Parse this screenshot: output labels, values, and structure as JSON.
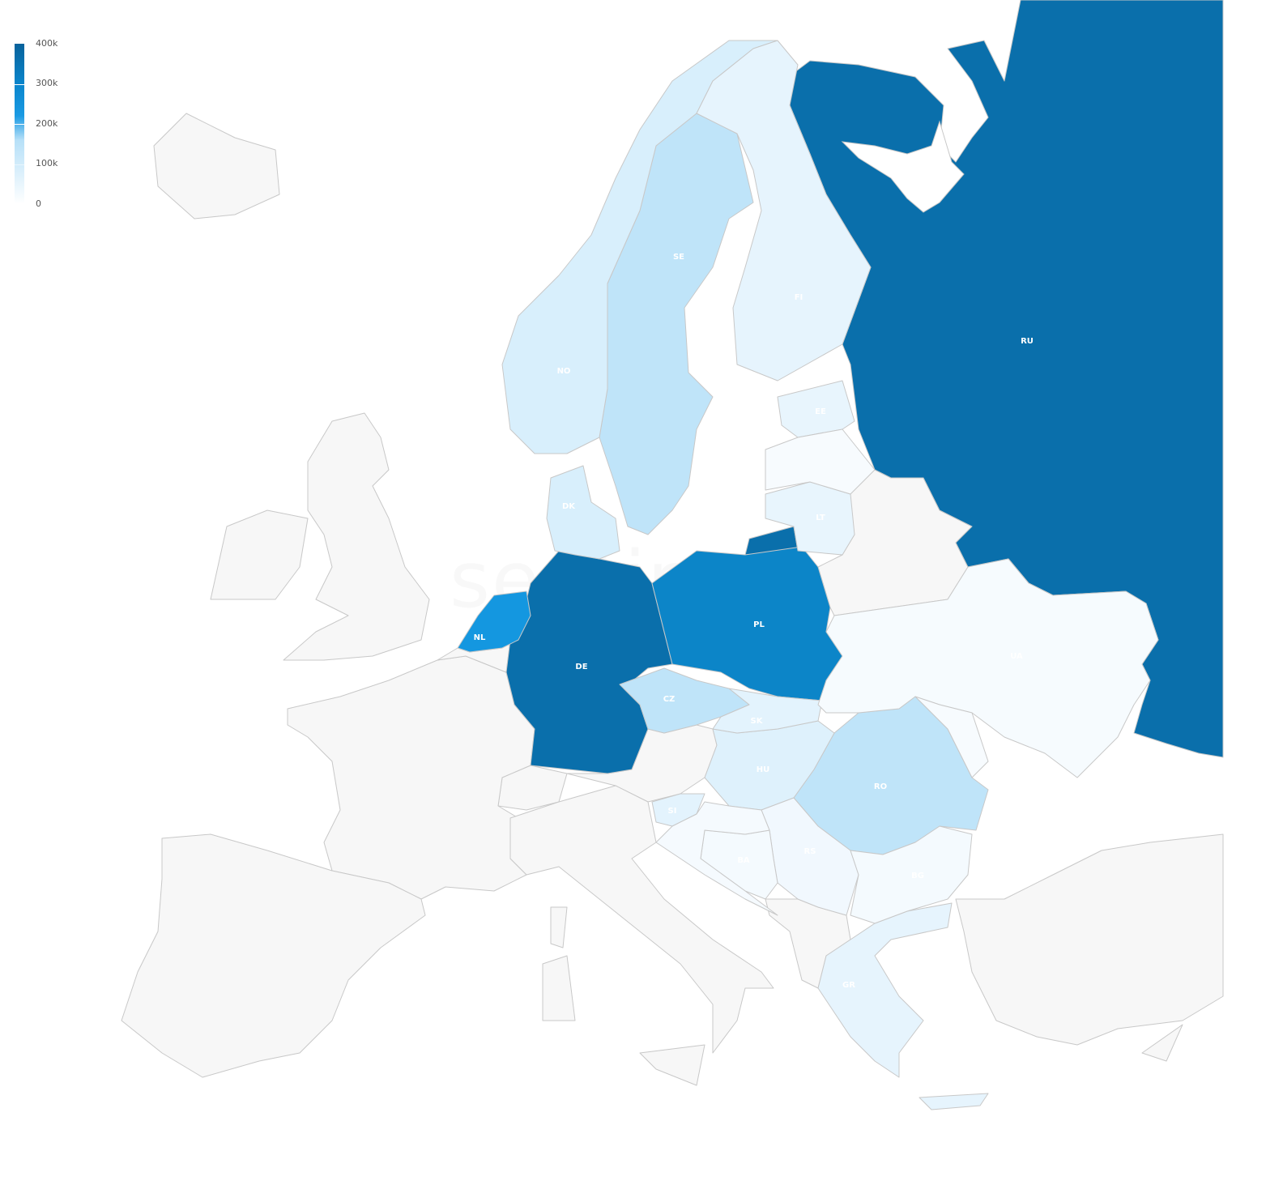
{
  "watermark": "sentinelone",
  "legend": {
    "ticks": [
      "400k",
      "300k",
      "200k",
      "100k",
      "0"
    ],
    "min": 0,
    "max": 400000,
    "colors": [
      "#ffffff",
      "#b6e0f8",
      "#1a9ae3",
      "#0a85cc",
      "#08629b"
    ]
  },
  "colors": {
    "no_data": "#f7f7f7",
    "border": "#c8c8c8"
  },
  "countries": [
    {
      "code": "RU",
      "label": "RU",
      "value": 380000,
      "color": "#0a6fab"
    },
    {
      "code": "DE",
      "label": "DE",
      "value": 370000,
      "color": "#0a6fab"
    },
    {
      "code": "PL",
      "label": "PL",
      "value": 300000,
      "color": "#0c85c8"
    },
    {
      "code": "NL",
      "label": "NL",
      "value": 220000,
      "color": "#1497e0"
    },
    {
      "code": "SE",
      "label": "SE",
      "value": 70000,
      "color": "#bfe4f9"
    },
    {
      "code": "CZ",
      "label": "CZ",
      "value": 70000,
      "color": "#bfe4f9"
    },
    {
      "code": "RO",
      "label": "RO",
      "value": 65000,
      "color": "#bfe4f9"
    },
    {
      "code": "NO",
      "label": "NO",
      "value": 50000,
      "color": "#d8effc"
    },
    {
      "code": "DK",
      "label": "DK",
      "value": 50000,
      "color": "#d8effc"
    },
    {
      "code": "HU",
      "label": "HU",
      "value": 40000,
      "color": "#def1fc"
    },
    {
      "code": "SK",
      "label": "SK",
      "value": 35000,
      "color": "#e3f3fd"
    },
    {
      "code": "FI",
      "label": "FI",
      "value": 30000,
      "color": "#e6f4fd"
    },
    {
      "code": "SI",
      "label": "SI",
      "value": 30000,
      "color": "#e3f3fd"
    },
    {
      "code": "GR",
      "label": "GR",
      "value": 30000,
      "color": "#e6f4fd"
    },
    {
      "code": "EE",
      "label": "EE",
      "value": 25000,
      "color": "#e8f5fd"
    },
    {
      "code": "LT",
      "label": "LT",
      "value": 25000,
      "color": "#e8f5fd"
    },
    {
      "code": "RS",
      "label": "RS",
      "value": 15000,
      "color": "#f1f8fe"
    },
    {
      "code": "BA",
      "label": "BA",
      "value": 10000,
      "color": "#f4fafe"
    },
    {
      "code": "BG",
      "label": "BG",
      "value": 10000,
      "color": "#f4fafe"
    },
    {
      "code": "UA",
      "label": "UA",
      "value": 10000,
      "color": "#f6fbfe"
    },
    {
      "code": "LV",
      "label": "",
      "value": 8000,
      "color": "#f7fbfe"
    },
    {
      "code": "HR",
      "label": "",
      "value": 8000,
      "color": "#f5fafe"
    },
    {
      "code": "MD",
      "label": "",
      "value": 5000,
      "color": "#f7fbfe"
    }
  ]
}
